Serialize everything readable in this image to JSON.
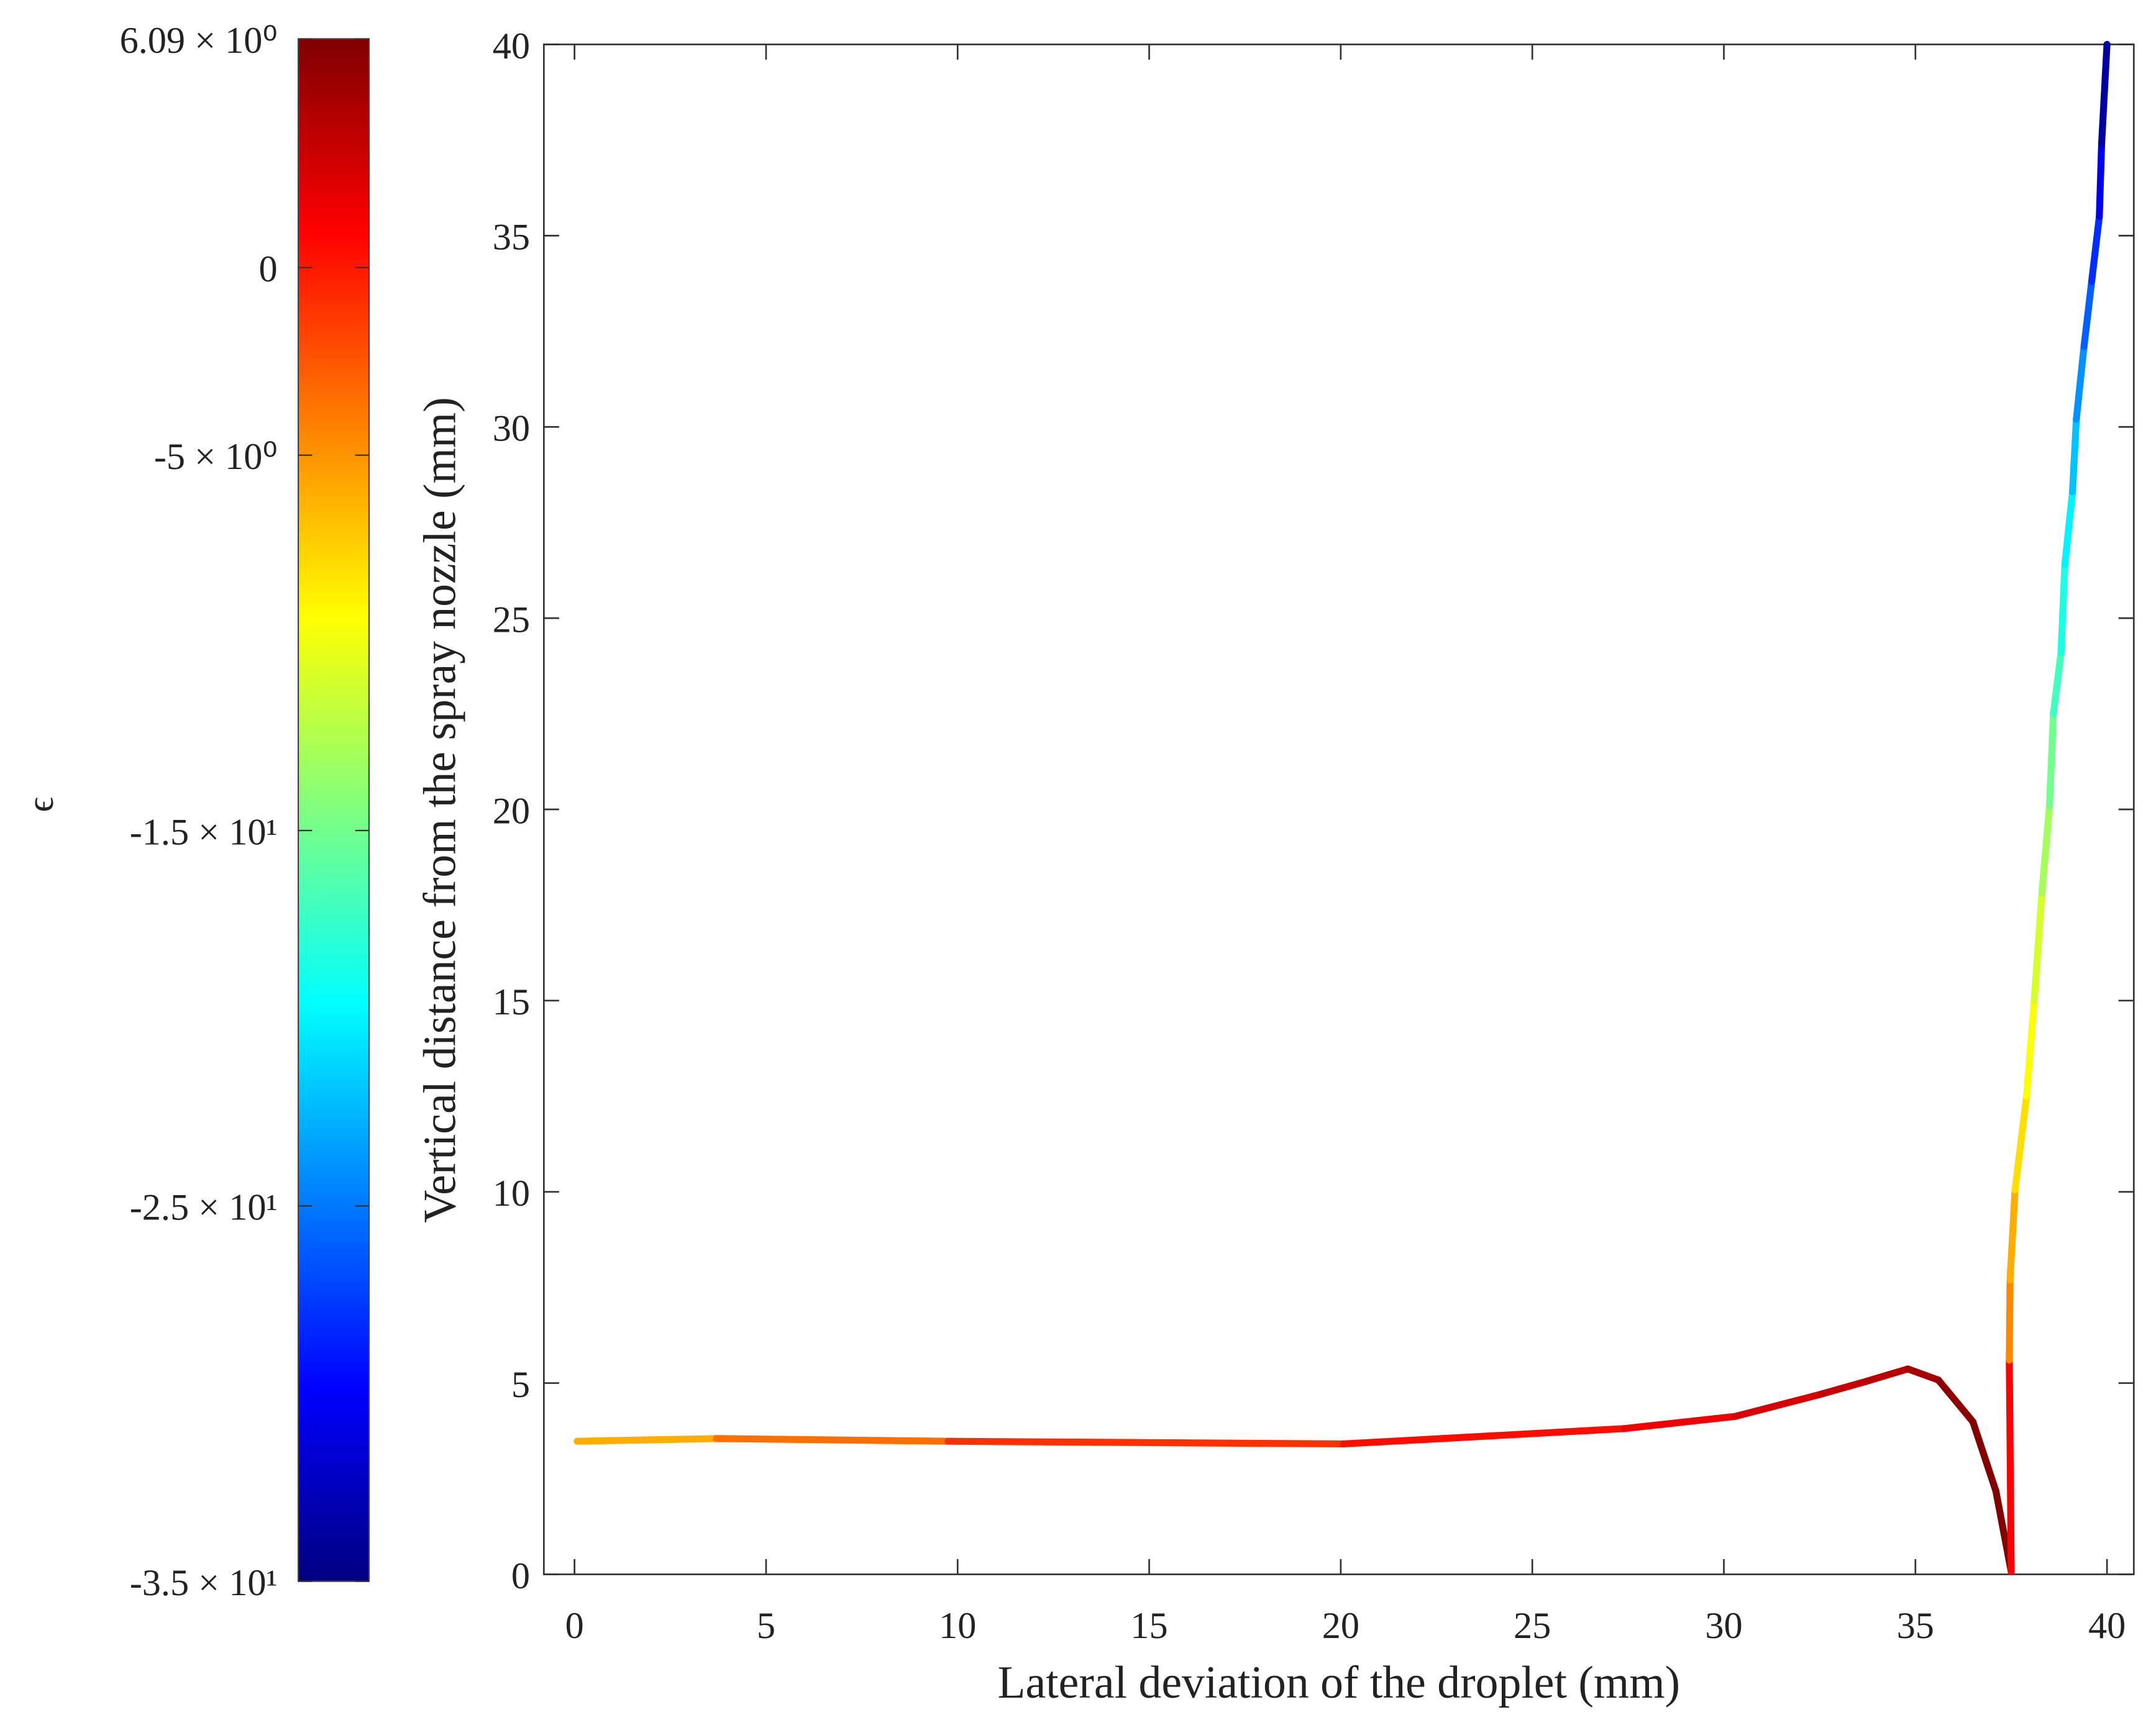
{
  "chart_data": {
    "type": "line",
    "xlabel": "Lateral deviation of the droplet (mm)",
    "ylabel": "Vertical distance from the spray nozzle (mm)",
    "x": [
      0.07,
      3.7,
      9.75,
      20.07,
      27.4,
      30.3,
      32.5,
      33.7,
      34.8,
      35.6,
      36.5,
      37.1,
      37.5,
      37.45,
      37.47,
      37.6,
      37.9,
      38.1,
      38.3,
      38.5,
      38.6,
      38.8,
      38.9,
      39.1,
      39.2,
      39.4,
      39.6,
      39.8,
      39.86,
      40.0
    ],
    "values": [
      3.48,
      3.55,
      3.48,
      3.41,
      3.81,
      4.13,
      4.7,
      5.04,
      5.37,
      5.08,
      3.99,
      2.18,
      0.07,
      5.6,
      7.7,
      10.05,
      12.5,
      15.0,
      17.8,
      20.1,
      22.5,
      24.1,
      26.4,
      28.3,
      30.2,
      32.1,
      33.8,
      35.5,
      37.4,
      40.0
    ],
    "color_values": [
      -7,
      -5,
      -2,
      0,
      1,
      2,
      3,
      3.5,
      4,
      5,
      6,
      6,
      6,
      -4,
      -5,
      -7,
      -9,
      -10,
      -12,
      -14,
      -16,
      -18,
      -19,
      -21,
      -23,
      -25,
      -27,
      -29,
      -32,
      -35
    ],
    "xlim": [
      -0.8,
      40.7
    ],
    "ylim": [
      0,
      40
    ],
    "xticks": [
      0,
      5,
      10,
      15,
      20,
      25,
      30,
      35,
      40
    ],
    "yticks": [
      0,
      5,
      10,
      15,
      20,
      25,
      30,
      35,
      40
    ],
    "colorbar": {
      "label": "ϵ",
      "colormap": "jet",
      "lim": [
        -35,
        6.09
      ],
      "ticks": [
        {
          "value": 6.09,
          "label": "6.09 × 10⁰"
        },
        0,
        {
          "value": -5,
          "label": "-5 × 10⁰"
        },
        {
          "value": -15,
          "label": "-1.5 × 10¹"
        },
        {
          "value": -25,
          "label": "-2.5 × 10¹"
        },
        {
          "value": -35,
          "label": "-3.5 × 10¹"
        }
      ]
    }
  }
}
